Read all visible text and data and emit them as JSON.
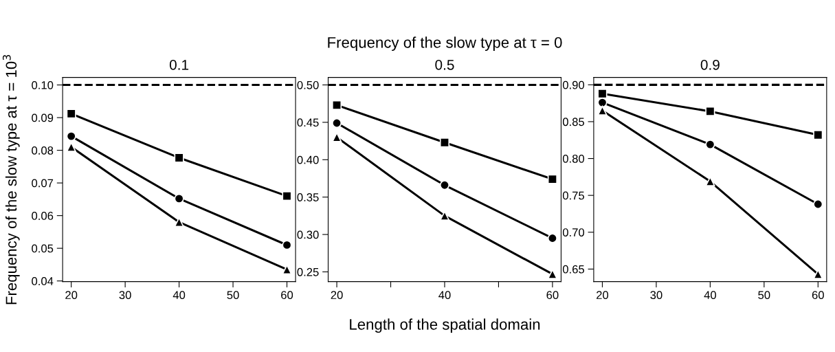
{
  "chart_data": [
    {
      "type": "line",
      "title": "0.1",
      "ylabel": "Frequency of the slow type at τ = 10$^{3}$",
      "x": [
        20,
        40,
        60
      ],
      "xlim": [
        18.4,
        61.6
      ],
      "xticks": [
        20,
        30,
        40,
        50,
        60
      ],
      "ylim": [
        0.0398,
        0.1023
      ],
      "yticks": [
        {
          "value": 0.04,
          "label": "0.04"
        },
        {
          "value": 0.05,
          "label": "0.05"
        },
        {
          "value": 0.06,
          "label": "0.06"
        },
        {
          "value": 0.07,
          "label": "0.07"
        },
        {
          "value": 0.08,
          "label": "0.08"
        },
        {
          "value": 0.09,
          "label": "0.09"
        },
        {
          "value": 0.1,
          "label": "0.10"
        }
      ],
      "grid": false,
      "line_style": "solid",
      "ref_lines": [
        {
          "axis": "y",
          "value": 0.1,
          "line_style": "dashed",
          "color": "#000000"
        }
      ],
      "series": [
        {
          "color": "#000000",
          "marker": "square",
          "values": [
            0.0912,
            0.0777,
            0.066
          ]
        },
        {
          "color": "#000000",
          "marker": "circle",
          "values": [
            0.0843,
            0.0652,
            0.051
          ]
        },
        {
          "color": "#000000",
          "marker": "triangle",
          "values": [
            0.081,
            0.058,
            0.0435
          ]
        }
      ]
    },
    {
      "type": "line",
      "title": "0.5",
      "xlabel": "Length of the spatial domain",
      "annotations": [
        "Frequency of the slow type at τ = 0"
      ],
      "x": [
        20,
        40,
        60
      ],
      "xlim": [
        18.4,
        61.6
      ],
      "xticks": [
        20,
        {
          "value": 30,
          "label": null
        },
        40,
        {
          "value": 50,
          "label": null
        },
        60
      ],
      "ylim": [
        0.237,
        0.51
      ],
      "yticks": [
        {
          "value": 0.25,
          "label": "0.25"
        },
        {
          "value": 0.3,
          "label": "0.30"
        },
        {
          "value": 0.35,
          "label": "0.35"
        },
        {
          "value": 0.4,
          "label": "0.40"
        },
        {
          "value": 0.45,
          "label": "0.45"
        },
        {
          "value": 0.5,
          "label": "0.50"
        }
      ],
      "grid": false,
      "line_style": "solid",
      "ref_lines": [
        {
          "axis": "y",
          "value": 0.5,
          "line_style": "dashed",
          "color": "#000000"
        }
      ],
      "series": [
        {
          "color": "#000000",
          "marker": "square",
          "values": [
            0.473,
            0.423,
            0.374
          ]
        },
        {
          "color": "#000000",
          "marker": "circle",
          "values": [
            0.449,
            0.366,
            0.295
          ]
        },
        {
          "color": "#000000",
          "marker": "triangle",
          "values": [
            0.43,
            0.325,
            0.247
          ]
        }
      ]
    },
    {
      "type": "line",
      "title": "0.9",
      "x": [
        20,
        40,
        60
      ],
      "xlim": [
        18.4,
        61.6
      ],
      "xticks": [
        20,
        30,
        40,
        50,
        60
      ],
      "ylim": [
        0.633,
        0.91
      ],
      "yticks": [
        {
          "value": 0.65,
          "label": "0.65"
        },
        {
          "value": 0.7,
          "label": "0.70"
        },
        {
          "value": 0.75,
          "label": "0.75"
        },
        {
          "value": 0.8,
          "label": "0.80"
        },
        {
          "value": 0.85,
          "label": "0.85"
        },
        {
          "value": 0.9,
          "label": "0.90"
        }
      ],
      "grid": false,
      "line_style": "solid",
      "ref_lines": [
        {
          "axis": "y",
          "value": 0.9,
          "line_style": "dashed",
          "color": "#000000"
        }
      ],
      "series": [
        {
          "color": "#000000",
          "marker": "square",
          "values": [
            0.888,
            0.864,
            0.832
          ]
        },
        {
          "color": "#000000",
          "marker": "circle",
          "values": [
            0.876,
            0.819,
            0.738
          ]
        },
        {
          "color": "#000000",
          "marker": "triangle",
          "values": [
            0.865,
            0.769,
            0.643
          ]
        }
      ]
    }
  ]
}
